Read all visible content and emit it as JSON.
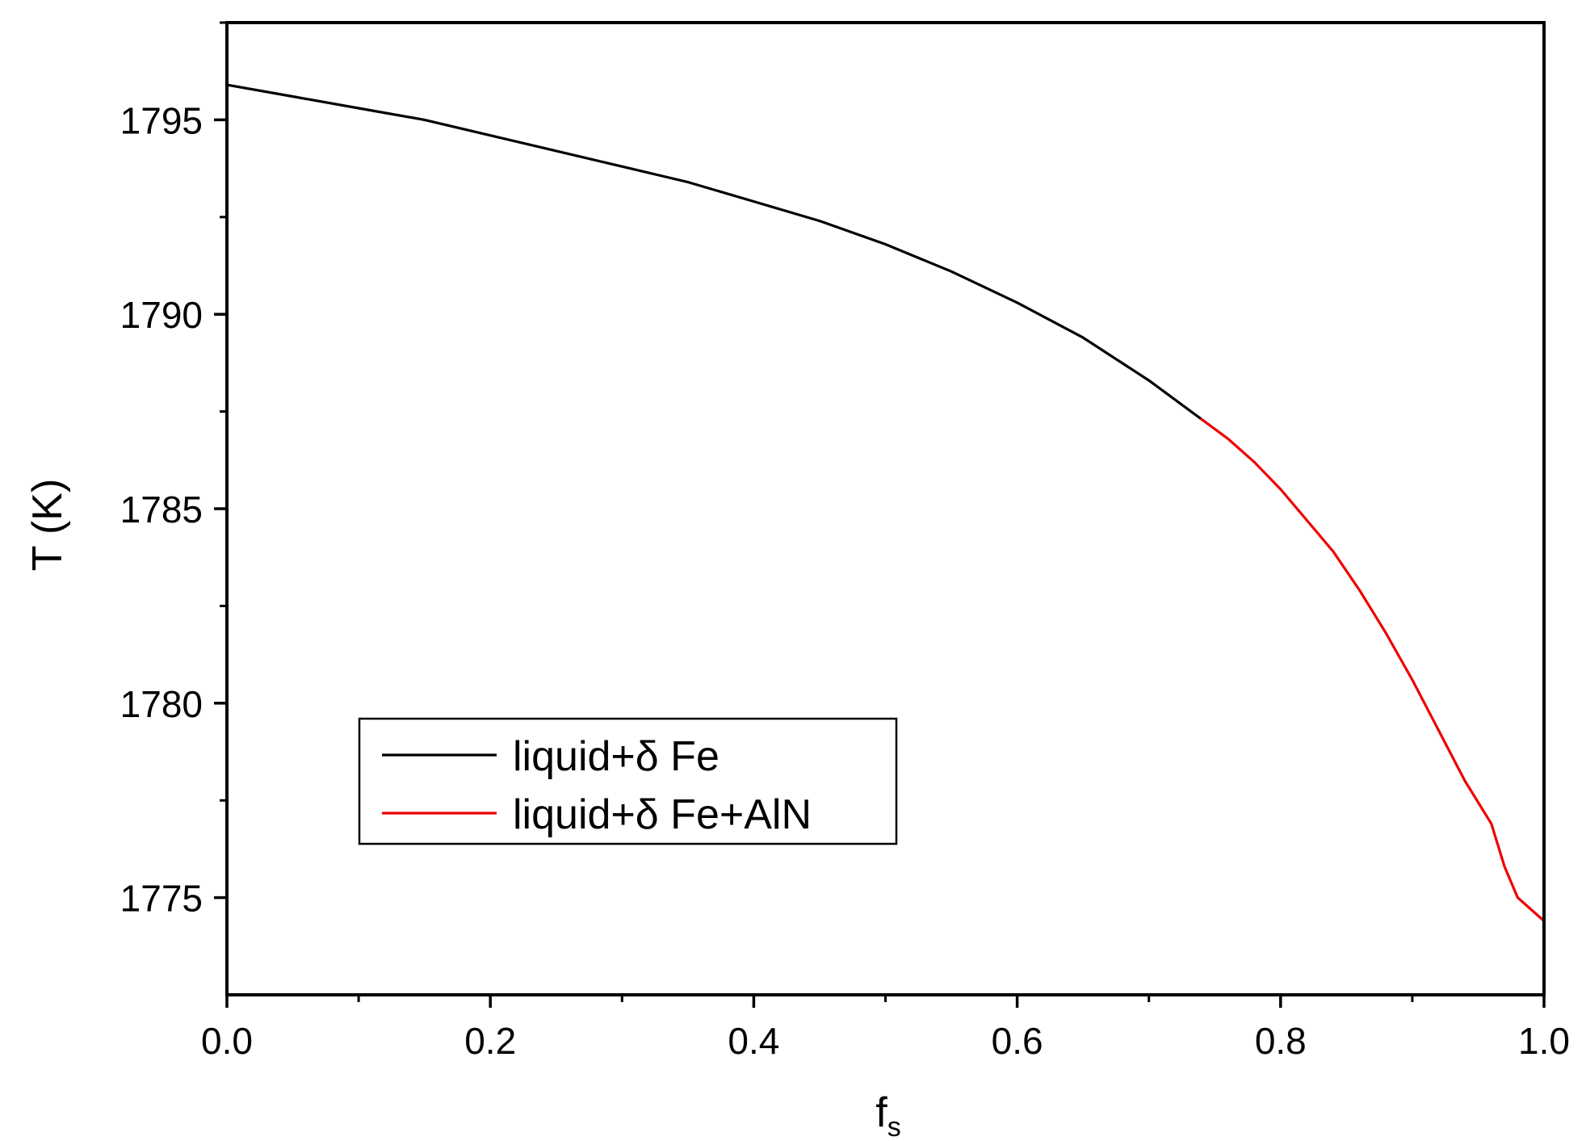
{
  "chart_data": {
    "type": "line",
    "xlabel": "f",
    "xlabel_subscript": "s",
    "ylabel": "T (K)",
    "xlim": [
      0.0,
      1.0
    ],
    "ylim": [
      1772.5,
      1797.5
    ],
    "x_ticks": [
      "0.0",
      "0.2",
      "0.4",
      "0.6",
      "0.8",
      "1.0"
    ],
    "x_tick_values": [
      0.0,
      0.2,
      0.4,
      0.6,
      0.8,
      1.0
    ],
    "x_minor_tick_values": [
      0.1,
      0.3,
      0.5,
      0.7,
      0.9
    ],
    "y_ticks": [
      "1775",
      "1780",
      "1785",
      "1790",
      "1795"
    ],
    "y_tick_values": [
      1775,
      1780,
      1785,
      1790,
      1795
    ],
    "y_minor_tick_values": [
      1777.5,
      1782.5,
      1787.5,
      1792.5,
      1797.5
    ],
    "grid": false,
    "legend_position": "lower-left",
    "series": [
      {
        "name": "liquid+δ Fe",
        "color": "#000000",
        "points": [
          [
            0.0,
            1795.9
          ],
          [
            0.05,
            1795.6
          ],
          [
            0.1,
            1795.3
          ],
          [
            0.15,
            1795.0
          ],
          [
            0.2,
            1794.6
          ],
          [
            0.25,
            1794.2
          ],
          [
            0.3,
            1793.8
          ],
          [
            0.35,
            1793.4
          ],
          [
            0.4,
            1792.9
          ],
          [
            0.45,
            1792.4
          ],
          [
            0.5,
            1791.8
          ],
          [
            0.55,
            1791.1
          ],
          [
            0.6,
            1790.3
          ],
          [
            0.65,
            1789.4
          ],
          [
            0.7,
            1788.3
          ],
          [
            0.74,
            1787.3
          ]
        ]
      },
      {
        "name": "liquid+δ Fe+AlN",
        "color": "#ee0000",
        "points": [
          [
            0.74,
            1787.3
          ],
          [
            0.76,
            1786.8
          ],
          [
            0.78,
            1786.2
          ],
          [
            0.8,
            1785.5
          ],
          [
            0.82,
            1784.7
          ],
          [
            0.84,
            1783.9
          ],
          [
            0.86,
            1782.9
          ],
          [
            0.88,
            1781.8
          ],
          [
            0.9,
            1780.6
          ],
          [
            0.92,
            1779.3
          ],
          [
            0.94,
            1778.0
          ],
          [
            0.96,
            1776.9
          ],
          [
            0.97,
            1775.8
          ],
          [
            0.98,
            1775.0
          ],
          [
            1.0,
            1774.4
          ]
        ]
      }
    ]
  }
}
